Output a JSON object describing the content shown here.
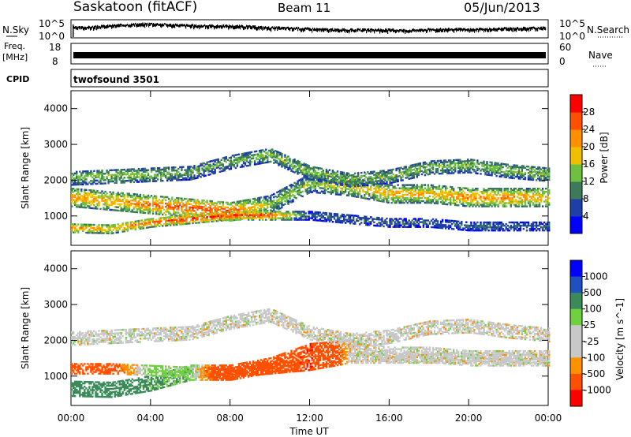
{
  "header": {
    "station": "Saskatoon (fitACF)",
    "beam": "Beam 11",
    "date": "05/Jun/2013"
  },
  "status_panels": {
    "nsky_label": "N.Sky",
    "nsearch_label": "N.Search",
    "noise_ticks_left": [
      "10^5",
      "10^0"
    ],
    "noise_ticks_right": [
      "10^5",
      "10^0"
    ],
    "freq_label": "Freq.",
    "freq_unit": "[MHz]",
    "freq_ticks": [
      "18",
      "8"
    ],
    "nave_label": "Nave",
    "nave_ticks": [
      "60",
      "0"
    ],
    "cpid_label": "CPID",
    "cpid_value": "twofsound 3501"
  },
  "colors": {
    "power_scale": [
      "#0000ff",
      "#1f3fa8",
      "#3c7a5a",
      "#6fc040",
      "#f0c000",
      "#ff9000",
      "#ff5000",
      "#ff0000"
    ],
    "velocity_scale": [
      "#ff0000",
      "#ff5000",
      "#ff9000",
      "#c8c8c8",
      "#c8c8c8",
      "#6fd040",
      "#3c8a5a",
      "#2050c0",
      "#0000ff"
    ]
  },
  "chart_data": [
    {
      "type": "line",
      "title": "N.Sky / N.Search",
      "x": [
        0,
        1,
        2,
        3,
        4,
        5,
        6,
        7,
        8,
        9,
        10,
        11,
        12,
        13,
        14,
        15,
        16,
        17,
        18,
        19,
        20,
        21,
        22,
        23,
        24
      ],
      "series": [
        {
          "name": "N.Sky",
          "values": [
            3.0,
            3.2,
            3.6,
            3.9,
            4.1,
            3.8,
            3.6,
            3.5,
            3.5,
            3.3,
            3.0,
            2.9,
            2.7,
            2.5,
            2.4,
            2.4,
            2.4,
            2.3,
            2.5,
            2.6,
            2.5,
            2.6,
            2.8,
            2.9,
            3.0
          ]
        }
      ],
      "ylim": [
        0,
        5
      ],
      "y_scale": "log10"
    },
    {
      "type": "line",
      "title": "Freq / Nave",
      "x": [
        0,
        24
      ],
      "series": [
        {
          "name": "Freq.",
          "values": [
            11,
            11
          ]
        }
      ],
      "ylim": [
        8,
        18
      ]
    },
    {
      "type": "heatmap",
      "title": "Power",
      "xlabel": "",
      "ylabel": "Slant Range [km]",
      "x_ticks": [
        "00:00",
        "04:00",
        "08:00",
        "12:00",
        "16:00",
        "20:00",
        "00:00"
      ],
      "y_ticks": [
        "1000",
        "2000",
        "3000",
        "4000"
      ],
      "xlim": [
        0,
        24
      ],
      "ylim": [
        180,
        4500
      ],
      "colorbar_label": "Power [dB]",
      "colorbar_ticks": [
        "4",
        "8",
        "12",
        "16",
        "20",
        "24",
        "28"
      ],
      "colorbar_range": [
        0,
        32
      ],
      "bands": [
        {
          "x": [
            0,
            2,
            4,
            6,
            8,
            10,
            12,
            14,
            16,
            18,
            20,
            22,
            24
          ],
          "range_km": [
            1500,
            1400,
            1300,
            1200,
            1100,
            1300,
            1900,
            1800,
            1600,
            1600,
            1500,
            1500,
            1500
          ],
          "width_km": 500,
          "power_db": [
            22,
            20,
            24,
            26,
            26,
            14,
            14,
            18,
            20,
            20,
            22,
            22,
            20
          ]
        },
        {
          "x": [
            0,
            2,
            4,
            6,
            8,
            10,
            12,
            14,
            16,
            18,
            20,
            22,
            24
          ],
          "range_km": [
            2050,
            2100,
            2150,
            2200,
            2500,
            2700,
            2200,
            2000,
            2100,
            2350,
            2400,
            2250,
            2150
          ],
          "width_km": 400,
          "power_db": [
            14,
            14,
            14,
            12,
            12,
            14,
            14,
            14,
            14,
            14,
            14,
            14,
            14
          ]
        },
        {
          "x": [
            0,
            2,
            4,
            6,
            8,
            10,
            12,
            14,
            16,
            18,
            20,
            22,
            24
          ],
          "range_km": [
            650,
            620,
            800,
            900,
            1000,
            1000,
            1000,
            900,
            800,
            800,
            700,
            700,
            700
          ],
          "width_km": 250,
          "power_db": [
            22,
            20,
            26,
            28,
            28,
            26,
            8,
            8,
            8,
            8,
            8,
            8,
            8
          ]
        }
      ]
    },
    {
      "type": "heatmap",
      "title": "Velocity",
      "xlabel": "Time UT",
      "ylabel": "Slant Range [km]",
      "x_ticks": [
        "00:00",
        "04:00",
        "08:00",
        "12:00",
        "16:00",
        "20:00",
        "00:00"
      ],
      "y_ticks": [
        "1000",
        "2000",
        "3000",
        "4000"
      ],
      "xlim": [
        0,
        24
      ],
      "ylim": [
        180,
        4500
      ],
      "colorbar_label": "Velocity [m s^-1]",
      "colorbar_ticks": [
        "1000",
        "500",
        "100",
        "25",
        "-25",
        "-100",
        "-500",
        "-1000"
      ],
      "bands": [
        {
          "x": [
            0,
            2,
            4,
            6,
            8,
            10,
            12,
            14,
            16,
            18,
            20,
            22,
            24
          ],
          "range_km": [
            650,
            620,
            800,
            1100,
            1100,
            1300,
            1700,
            1800,
            1600,
            1600,
            1500,
            1500,
            1500
          ],
          "width_km": 450,
          "velocity": [
            200,
            150,
            120,
            80,
            -300,
            -400,
            -500,
            0,
            0,
            0,
            0,
            0,
            0
          ]
        },
        {
          "x": [
            0,
            2,
            4,
            6,
            8,
            10,
            12,
            14,
            16,
            18,
            20,
            22,
            24
          ],
          "range_km": [
            2050,
            2100,
            2150,
            2200,
            2500,
            2700,
            2200,
            2000,
            2100,
            2350,
            2400,
            2250,
            2150
          ],
          "width_km": 400,
          "velocity": [
            0,
            0,
            0,
            0,
            0,
            0,
            0,
            0,
            0,
            0,
            0,
            0,
            0
          ]
        },
        {
          "x": [
            0,
            2,
            4,
            6,
            8,
            10,
            12,
            14,
            16,
            18,
            20,
            22,
            24
          ],
          "range_km": [
            1200,
            1200,
            1150,
            1100,
            1100,
            1200,
            1300,
            1500,
            1500,
            1500,
            1500,
            1500,
            1500
          ],
          "width_km": 300,
          "velocity": [
            -200,
            -150,
            60,
            30,
            -300,
            -400,
            -500,
            0,
            0,
            0,
            0,
            0,
            0
          ]
        }
      ]
    }
  ]
}
